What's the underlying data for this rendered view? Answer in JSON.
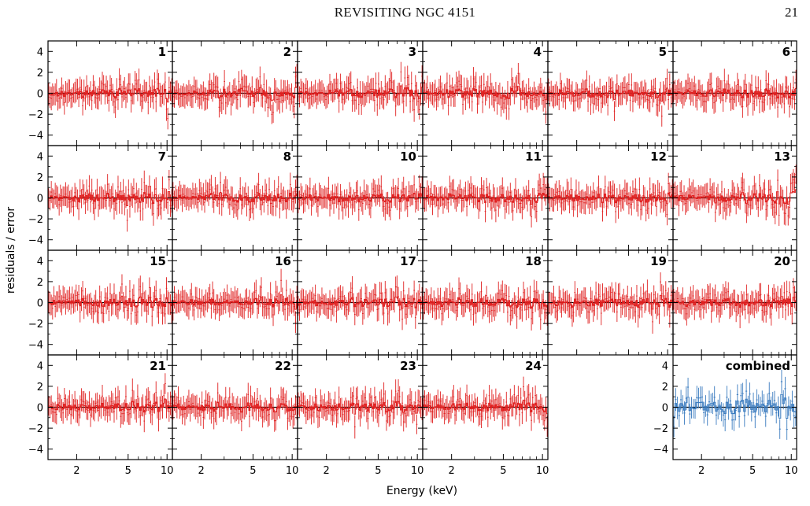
{
  "header": {
    "title": "REVISITING NGC 4151",
    "page_number": "21"
  },
  "colors": {
    "observation": "#e02020",
    "combined": "#3a7bbf",
    "axis": "#000000"
  },
  "chart_data": {
    "type": "line",
    "description_kind": "grid of residual spectra panels",
    "xlabel": "Energy (keV)",
    "ylabel": "residuals / error",
    "xscale": "log",
    "xlim": [
      1.2,
      11
    ],
    "ylim": [
      -5,
      5
    ],
    "xticks": [
      2,
      5,
      10
    ],
    "xtick_labels": [
      "2",
      "5",
      "10"
    ],
    "yticks": [
      -4,
      -2,
      0,
      2,
      4
    ],
    "ytick_labels": [
      "−4",
      "−2",
      "0",
      "2",
      "4"
    ],
    "panels": [
      {
        "label": "1",
        "row": 0,
        "col": 0,
        "color": "observation"
      },
      {
        "label": "2",
        "row": 0,
        "col": 1,
        "color": "observation"
      },
      {
        "label": "3",
        "row": 0,
        "col": 2,
        "color": "observation"
      },
      {
        "label": "4",
        "row": 0,
        "col": 3,
        "color": "observation"
      },
      {
        "label": "5",
        "row": 0,
        "col": 4,
        "color": "observation"
      },
      {
        "label": "6",
        "row": 0,
        "col": 5,
        "color": "observation"
      },
      {
        "label": "7",
        "row": 1,
        "col": 0,
        "color": "observation"
      },
      {
        "label": "8",
        "row": 1,
        "col": 1,
        "color": "observation"
      },
      {
        "label": "10",
        "row": 1,
        "col": 2,
        "color": "observation"
      },
      {
        "label": "11",
        "row": 1,
        "col": 3,
        "color": "observation"
      },
      {
        "label": "12",
        "row": 1,
        "col": 4,
        "color": "observation"
      },
      {
        "label": "13",
        "row": 1,
        "col": 5,
        "color": "observation"
      },
      {
        "label": "15",
        "row": 2,
        "col": 0,
        "color": "observation"
      },
      {
        "label": "16",
        "row": 2,
        "col": 1,
        "color": "observation"
      },
      {
        "label": "17",
        "row": 2,
        "col": 2,
        "color": "observation"
      },
      {
        "label": "18",
        "row": 2,
        "col": 3,
        "color": "observation"
      },
      {
        "label": "19",
        "row": 2,
        "col": 4,
        "color": "observation"
      },
      {
        "label": "20",
        "row": 2,
        "col": 5,
        "color": "observation"
      },
      {
        "label": "21",
        "row": 3,
        "col": 0,
        "color": "observation"
      },
      {
        "label": "22",
        "row": 3,
        "col": 1,
        "color": "observation"
      },
      {
        "label": "23",
        "row": 3,
        "col": 2,
        "color": "observation"
      },
      {
        "label": "24",
        "row": 3,
        "col": 3,
        "color": "observation"
      },
      {
        "label": "combined",
        "row": 3,
        "col": 5,
        "color": "combined"
      }
    ]
  }
}
